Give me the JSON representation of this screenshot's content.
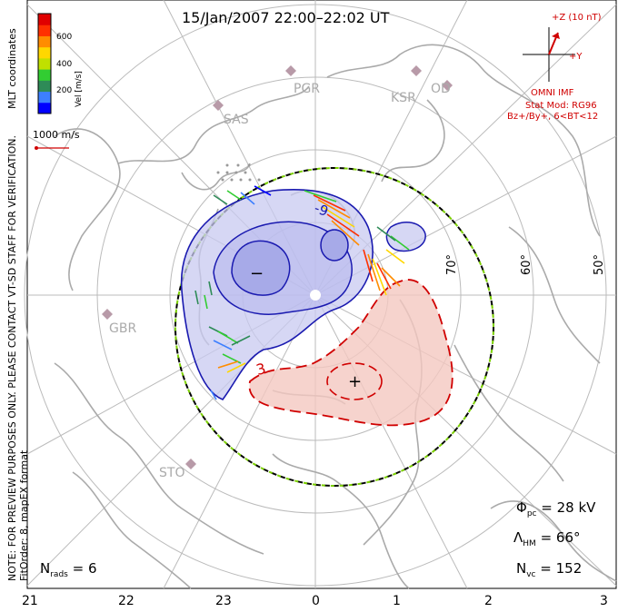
{
  "title": "15/Jan/2007 22:00–22:02 UT",
  "left_notes": {
    "line1": "NOTE: FOR PREVIEW PURPOSES ONLY. PLEASE CONTACT VT-SD STAFF FOR VERIFICATION.",
    "line2": "FitOrder: 8, mapEX format",
    "coords": "MLT coordinates"
  },
  "velocity_scale": {
    "label": "Vel [m/s]",
    "ticks": [
      "600",
      "400",
      "200"
    ],
    "colors": [
      "#0000ff",
      "#3d7fff",
      "#2e8b57",
      "#32cd32",
      "#c0e000",
      "#ffd700",
      "#ff8c00",
      "#ff3000",
      "#e00000"
    ]
  },
  "vector_scale": {
    "label": "1000 m/s"
  },
  "imf": {
    "z_label": "+Z (10 nT)",
    "y_label": "+Y",
    "source": "OMNI IMF",
    "model": "Stat Mod: RG96",
    "condition": "Bz+/By+, 6<BT<12"
  },
  "stations": [
    "PGR",
    "KSR",
    "OD",
    "SAS",
    "GBR",
    "STO"
  ],
  "latitude_labels": [
    "70°",
    "60°",
    "50°"
  ],
  "mlt_labels": [
    "21",
    "22",
    "23",
    "0",
    "1",
    "2",
    "3"
  ],
  "contour_labels": {
    "neg": "-9",
    "pos": "3",
    "neg_center": "−",
    "pos_center": "+"
  },
  "stats": {
    "phi_pc_label": "Φ",
    "phi_pc_sub": "pc",
    "phi_pc_value": "= 28 kV",
    "lambda_label": "Λ",
    "lambda_sub": "HM",
    "lambda_value": "= 66°",
    "nvc_label": "N",
    "nvc_sub": "vc",
    "nvc_value": "= 152",
    "nrads_label": "N",
    "nrads_sub": "rads",
    "nrads_value": "= 6"
  }
}
